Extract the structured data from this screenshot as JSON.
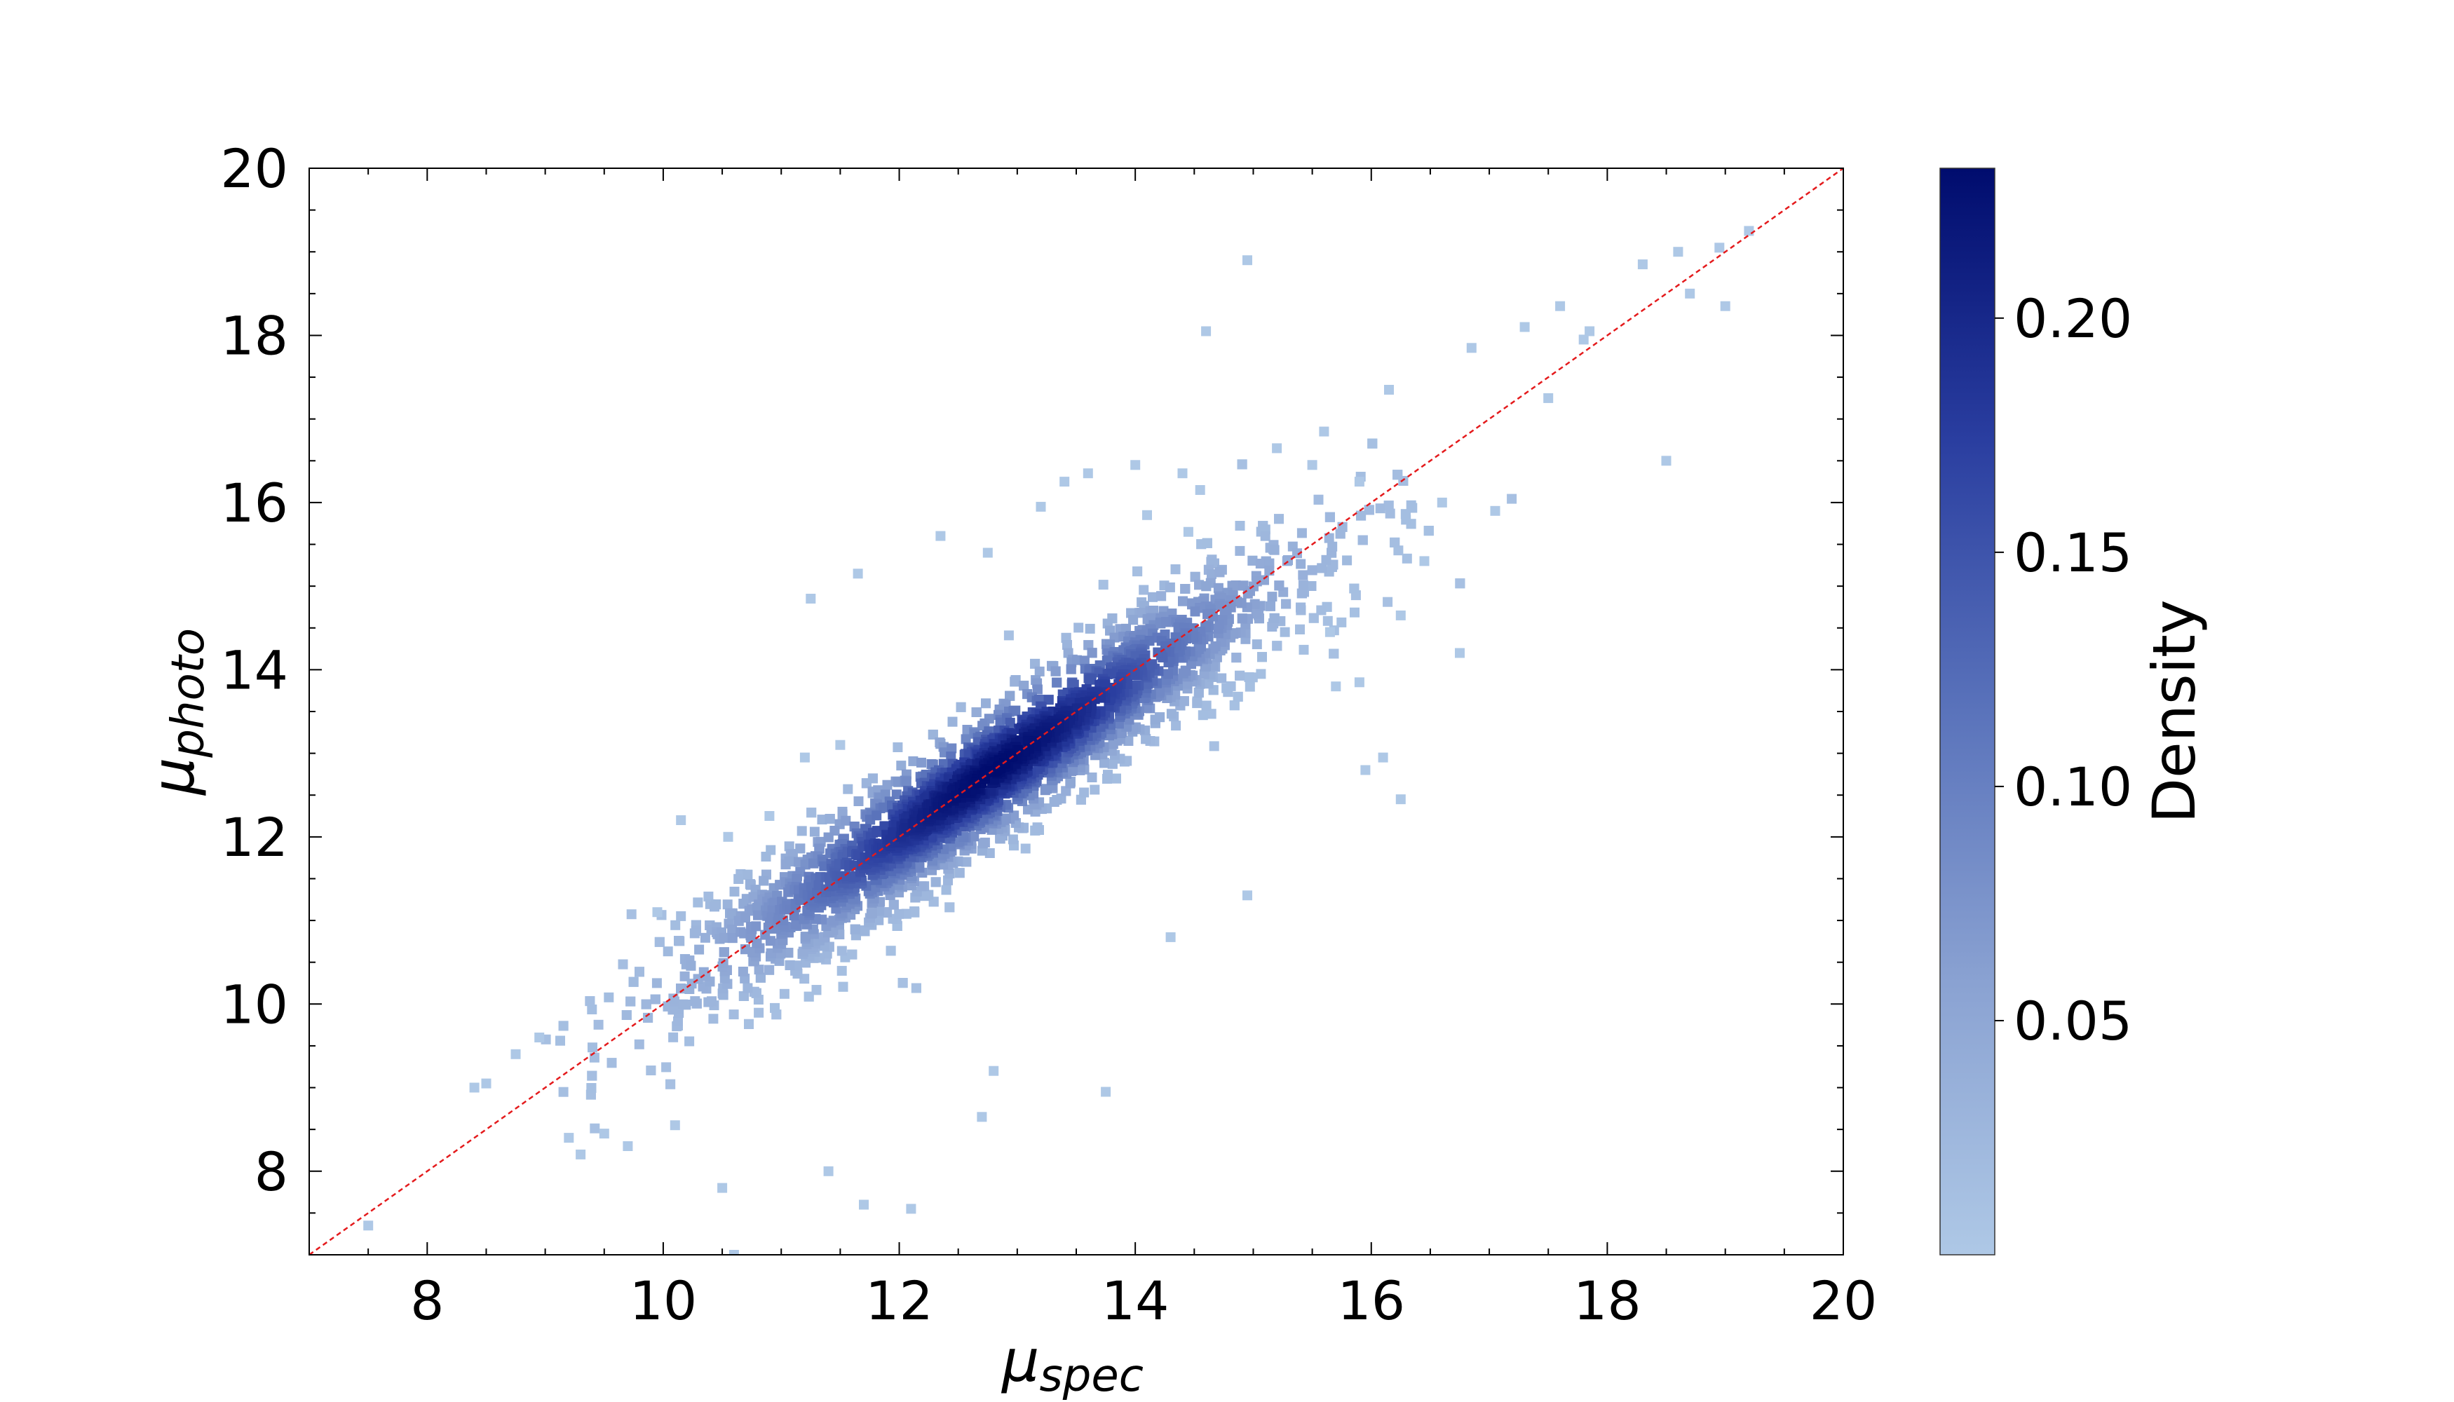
{
  "chart_data": {
    "type": "heatmap",
    "subtype": "density-scatter",
    "title": "",
    "xlabel": {
      "base": "μ",
      "sub": "spec"
    },
    "ylabel": {
      "base": "μ",
      "sub": "photo"
    },
    "xlim": [
      7,
      20
    ],
    "ylim": [
      7,
      20
    ],
    "x_ticks": [
      8,
      10,
      12,
      14,
      16,
      18,
      20
    ],
    "y_ticks": [
      8,
      10,
      12,
      14,
      16,
      18,
      20
    ],
    "x_tick_labels": [
      "8",
      "10",
      "12",
      "14",
      "16",
      "18",
      "20"
    ],
    "y_tick_labels": [
      "8",
      "10",
      "12",
      "14",
      "16",
      "18",
      "20"
    ],
    "grid": false,
    "reference_line": {
      "type": "identity",
      "from": [
        7,
        7
      ],
      "to": [
        20,
        20
      ],
      "color": "#e41a1c",
      "style": "dashed"
    },
    "density_peak": {
      "x": 12.8,
      "y": 12.7
    },
    "outliers": [
      [
        7.5,
        7.35
      ],
      [
        8.4,
        9.0
      ],
      [
        8.5,
        9.05
      ],
      [
        8.75,
        9.4
      ],
      [
        8.95,
        9.6
      ],
      [
        9.2,
        8.4
      ],
      [
        9.3,
        8.2
      ],
      [
        9.5,
        8.45
      ],
      [
        9.7,
        8.3
      ],
      [
        10.1,
        8.55
      ],
      [
        10.5,
        7.8
      ],
      [
        10.6,
        7.0
      ],
      [
        11.4,
        8.0
      ],
      [
        11.7,
        7.6
      ],
      [
        12.1,
        7.55
      ],
      [
        12.7,
        8.65
      ],
      [
        12.8,
        9.2
      ],
      [
        13.75,
        8.95
      ],
      [
        14.3,
        10.8
      ],
      [
        14.95,
        11.3
      ],
      [
        10.15,
        12.2
      ],
      [
        9.95,
        11.1
      ],
      [
        10.9,
        12.25
      ],
      [
        11.2,
        12.95
      ],
      [
        11.5,
        13.1
      ],
      [
        10.55,
        12.0
      ],
      [
        11.25,
        14.85
      ],
      [
        11.65,
        15.15
      ],
      [
        12.35,
        15.6
      ],
      [
        12.75,
        15.4
      ],
      [
        13.2,
        15.95
      ],
      [
        13.4,
        16.25
      ],
      [
        13.6,
        16.35
      ],
      [
        14.0,
        16.45
      ],
      [
        14.4,
        16.35
      ],
      [
        14.45,
        15.65
      ],
      [
        14.55,
        16.15
      ],
      [
        14.6,
        18.05
      ],
      [
        14.95,
        18.9
      ],
      [
        14.1,
        15.85
      ],
      [
        15.2,
        16.65
      ],
      [
        15.5,
        16.45
      ],
      [
        15.9,
        16.25
      ],
      [
        15.65,
        14.45
      ],
      [
        16.25,
        14.65
      ],
      [
        16.1,
        12.95
      ],
      [
        15.95,
        12.8
      ],
      [
        16.25,
        12.45
      ],
      [
        16.75,
        14.2
      ],
      [
        15.9,
        13.85
      ],
      [
        15.7,
        13.8
      ],
      [
        16.45,
        15.3
      ],
      [
        16.6,
        16.0
      ],
      [
        17.05,
        15.9
      ],
      [
        17.5,
        17.25
      ],
      [
        18.5,
        16.5
      ],
      [
        18.3,
        18.85
      ],
      [
        18.6,
        19.0
      ],
      [
        18.95,
        19.05
      ],
      [
        19.0,
        18.35
      ],
      [
        19.2,
        19.25
      ],
      [
        18.7,
        18.5
      ],
      [
        17.6,
        18.35
      ],
      [
        17.85,
        18.05
      ],
      [
        17.8,
        17.95
      ],
      [
        17.3,
        18.1
      ],
      [
        16.85,
        17.85
      ],
      [
        16.15,
        17.35
      ],
      [
        15.6,
        16.85
      ]
    ]
  },
  "colorbar": {
    "label": "Density",
    "min": 0.0,
    "max": 0.232,
    "ticks": [
      0.05,
      0.1,
      0.15,
      0.2
    ],
    "tick_labels": [
      "0.05",
      "0.10",
      "0.15",
      "0.20"
    ],
    "color_low": "#aec8e6",
    "color_high": "#000c6e"
  }
}
